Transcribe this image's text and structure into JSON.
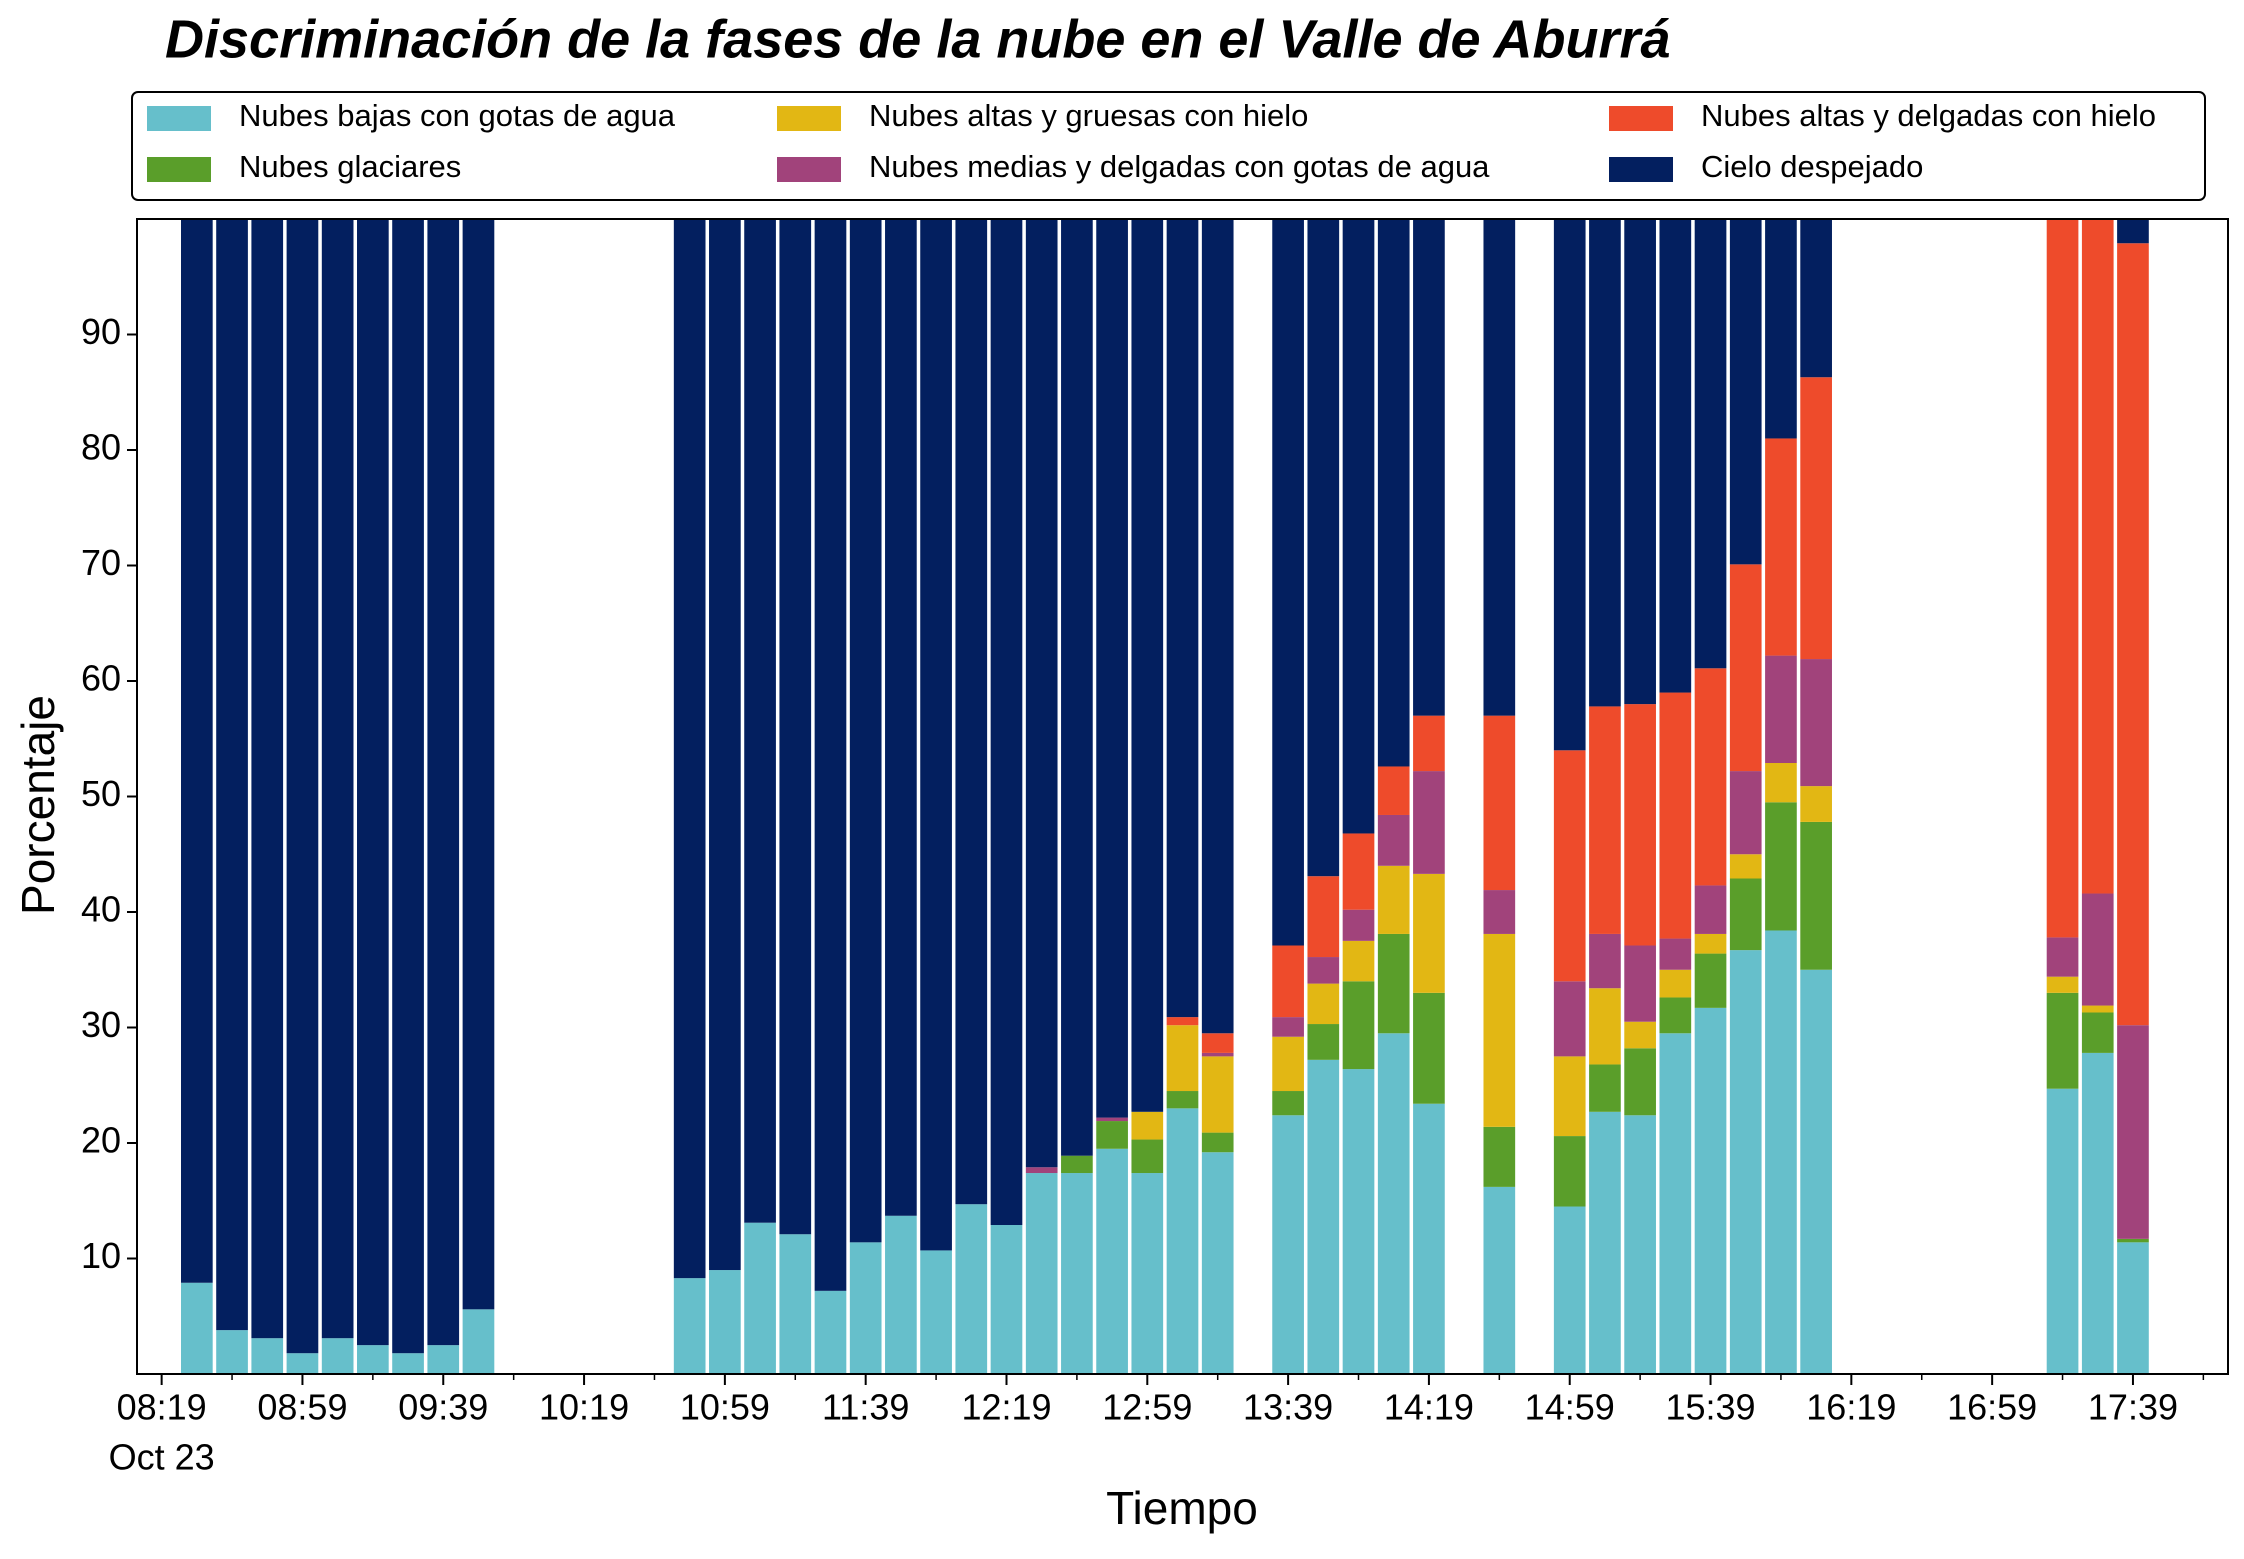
{
  "chart_data": {
    "type": "stacked_bar",
    "title": "Discriminación de la fases de la nube en el Valle de Aburrá",
    "x_label": "Tiempo",
    "y_label": "Porcentaje",
    "x": [
      "08:29",
      "08:39",
      "08:49",
      "08:59",
      "09:09",
      "09:19",
      "09:29",
      "09:39",
      "09:49",
      "10:49",
      "10:59",
      "11:09",
      "11:19",
      "11:29",
      "11:39",
      "11:49",
      "11:59",
      "12:09",
      "12:19",
      "12:29",
      "12:39",
      "12:49",
      "12:59",
      "13:09",
      "13:19",
      "13:39",
      "13:49",
      "13:59",
      "14:09",
      "14:19",
      "14:39",
      "14:59",
      "15:09",
      "15:19",
      "15:29",
      "15:39",
      "15:49",
      "15:59",
      "16:09",
      "17:19",
      "17:29",
      "17:39"
    ],
    "series": [
      {
        "name": "Nubes bajas con gotas de agua",
        "color": "#66bfcb",
        "values": [
          7.9,
          3.8,
          3.1,
          1.8,
          3.1,
          2.5,
          1.8,
          2.5,
          5.6,
          8.3,
          9.0,
          13.1,
          12.1,
          7.2,
          11.4,
          13.7,
          10.7,
          14.7,
          12.9,
          17.4,
          17.4,
          19.5,
          17.4,
          23.0,
          19.2,
          22.4,
          27.2,
          26.4,
          29.5,
          23.4,
          16.2,
          14.5,
          22.7,
          22.4,
          29.5,
          31.7,
          36.7,
          38.4,
          35.0,
          24.7,
          27.8,
          11.4
        ]
      },
      {
        "name": "Nubes glaciares",
        "color": "#5a9e2a",
        "values": [
          0,
          0,
          0,
          0,
          0,
          0,
          0,
          0,
          0,
          0,
          0,
          0,
          0,
          0,
          0,
          0,
          0,
          0,
          0,
          0,
          1.5,
          2.4,
          2.9,
          1.5,
          1.7,
          2.1,
          3.1,
          7.6,
          8.6,
          9.6,
          5.2,
          6.1,
          4.1,
          5.8,
          3.1,
          4.7,
          6.2,
          11.1,
          12.8,
          8.3,
          3.5,
          0.3
        ]
      },
      {
        "name": "Nubes altas y gruesas con hielo",
        "color": "#e2b714",
        "values": [
          0,
          0,
          0,
          0,
          0,
          0,
          0,
          0,
          0,
          0,
          0,
          0,
          0,
          0,
          0,
          0,
          0,
          0,
          0,
          0,
          0,
          0,
          2.4,
          5.7,
          6.6,
          4.7,
          3.5,
          3.5,
          5.9,
          10.3,
          16.7,
          6.9,
          6.6,
          2.3,
          2.4,
          1.7,
          2.1,
          3.4,
          3.1,
          1.4,
          0.6,
          0
        ]
      },
      {
        "name": "Nubes medias y delgadas con gotas de agua",
        "color": "#a1437b",
        "values": [
          0,
          0,
          0,
          0,
          0,
          0,
          0,
          0,
          0,
          0,
          0,
          0,
          0,
          0,
          0,
          0,
          0,
          0,
          0,
          0.5,
          0,
          0.3,
          0,
          0,
          0.3,
          1.7,
          2.3,
          2.7,
          4.4,
          8.9,
          3.8,
          6.5,
          4.7,
          6.6,
          2.7,
          4.2,
          7.2,
          9.3,
          11.0,
          3.4,
          9.7,
          18.5
        ]
      },
      {
        "name": "Nubes altas y delgadas con hielo",
        "color": "#ee4b2b",
        "values": [
          0,
          0,
          0,
          0,
          0,
          0,
          0,
          0,
          0,
          0,
          0,
          0,
          0,
          0,
          0,
          0,
          0,
          0,
          0,
          0,
          0,
          0,
          0,
          0.7,
          1.7,
          6.2,
          7.0,
          6.6,
          4.2,
          4.8,
          15.1,
          20.0,
          19.7,
          20.9,
          21.3,
          18.8,
          17.9,
          18.8,
          24.4,
          62.2,
          58.4,
          67.7
        ]
      },
      {
        "name": "Cielo despejado",
        "color": "#031f5f",
        "values": [
          92.1,
          96.2,
          96.9,
          98.2,
          96.9,
          97.5,
          98.2,
          97.5,
          94.4,
          91.7,
          91.0,
          86.9,
          87.9,
          92.8,
          88.6,
          86.3,
          89.3,
          85.3,
          87.1,
          82.1,
          81.1,
          77.8,
          77.3,
          69.1,
          70.5,
          62.9,
          56.9,
          53.2,
          47.4,
          43.0,
          43.0,
          46.0,
          42.2,
          42.0,
          41.0,
          38.9,
          29.9,
          19.0,
          13.7,
          0,
          0,
          2.1
        ]
      }
    ],
    "xlim": [
      "08:12",
      "18:06"
    ],
    "xticks": [
      "08:19",
      "08:59",
      "09:39",
      "10:19",
      "10:59",
      "11:39",
      "12:19",
      "12:59",
      "13:39",
      "14:19",
      "14:59",
      "15:39",
      "16:19",
      "16:59",
      "17:39"
    ],
    "xminorticks": [
      "08:39",
      "09:19",
      "09:59",
      "10:39",
      "11:19",
      "11:59",
      "12:39",
      "13:19",
      "13:59",
      "14:39",
      "15:19",
      "15:59",
      "16:39",
      "17:19",
      "17:59"
    ],
    "x_date_label": "Oct 23",
    "ylim": [
      0,
      100
    ],
    "yticks": [
      10,
      20,
      30,
      40,
      50,
      60,
      70,
      80,
      90
    ],
    "legend": "top",
    "legend_columns": 3
  }
}
